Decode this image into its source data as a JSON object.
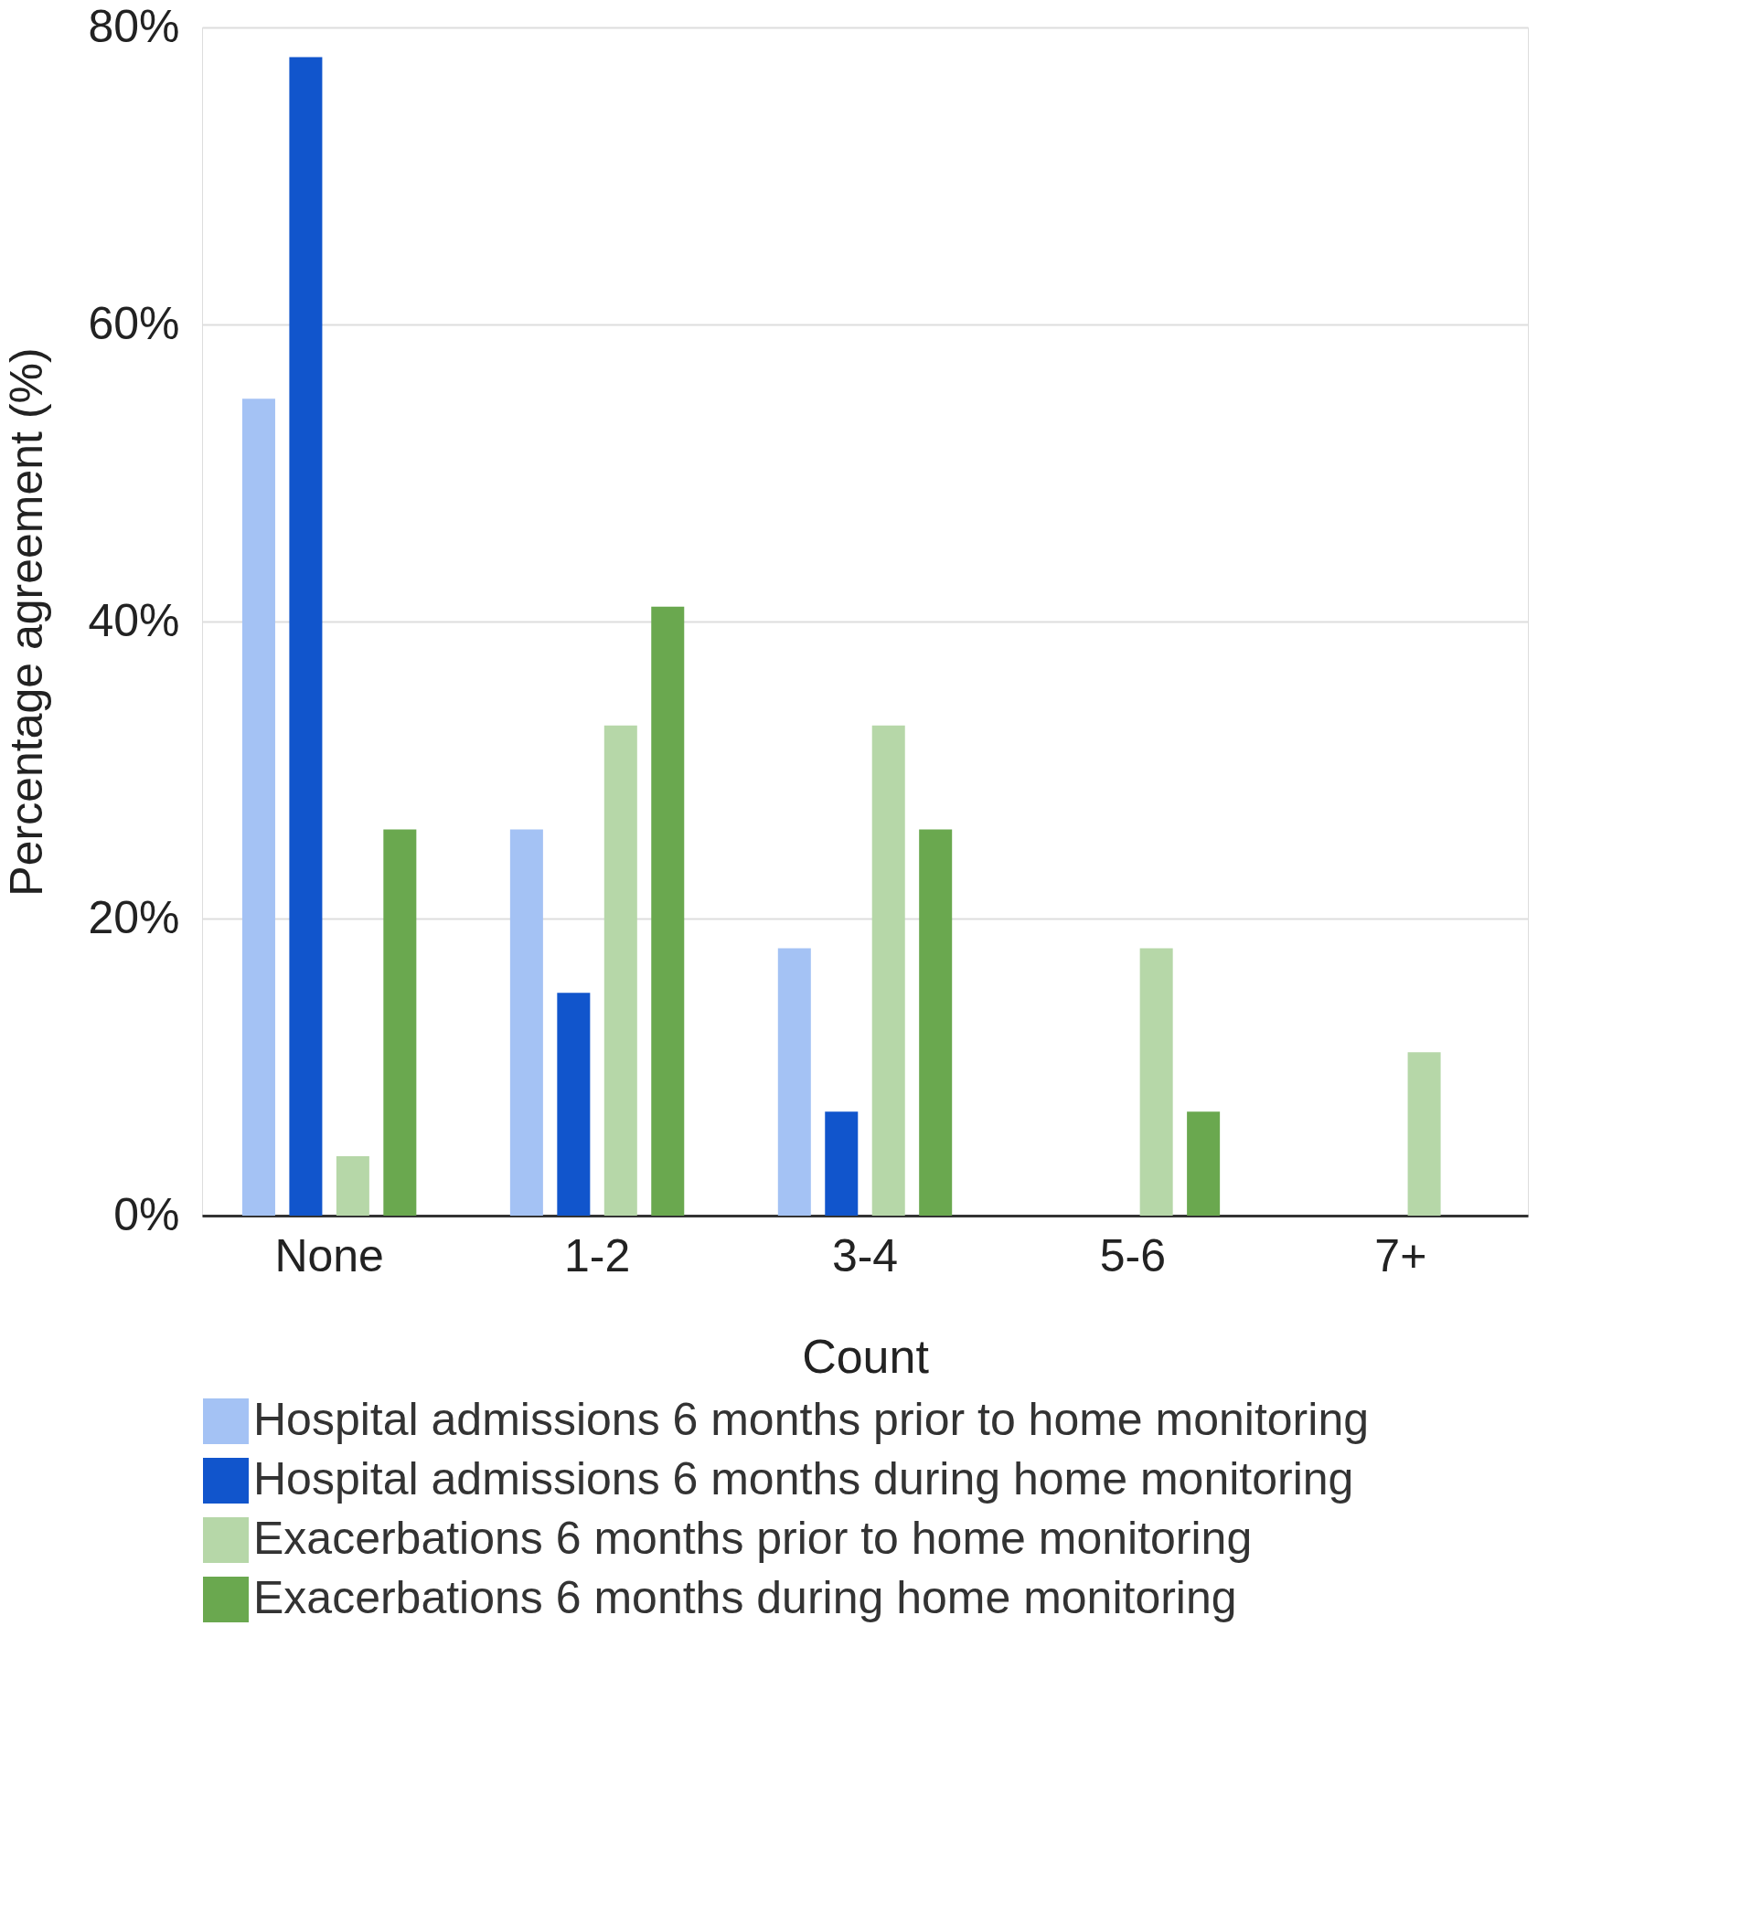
{
  "chart_data": {
    "type": "bar",
    "xlabel": "Count",
    "ylabel": "Percentage agreement (%)",
    "categories": [
      "None",
      "1-2",
      "3-4",
      "5-6",
      "7+"
    ],
    "series": [
      {
        "name": "Hospital admissions 6 months prior to home monitoring",
        "color": "#a4c2f4",
        "values": [
          55,
          26,
          18,
          0,
          0
        ]
      },
      {
        "name": "Hospital admissions 6 months during home monitoring",
        "color": "#1155cc",
        "values": [
          78,
          15,
          7,
          0,
          0
        ]
      },
      {
        "name": "Exacerbations 6 months prior to home monitoring",
        "color": "#b6d7a8",
        "values": [
          4,
          33,
          33,
          18,
          11
        ]
      },
      {
        "name": "Exacerbations 6 months during home monitoring",
        "color": "#6aa84f",
        "values": [
          26,
          41,
          26,
          7,
          0
        ]
      }
    ],
    "ylim": [
      0,
      80
    ],
    "yticks": [
      {
        "value": 0,
        "label": "0%"
      },
      {
        "value": 20,
        "label": "20%"
      },
      {
        "value": 40,
        "label": "40%"
      },
      {
        "value": 60,
        "label": "60%"
      },
      {
        "value": 80,
        "label": "80%"
      }
    ],
    "grid": "y",
    "legend": "bottom"
  }
}
